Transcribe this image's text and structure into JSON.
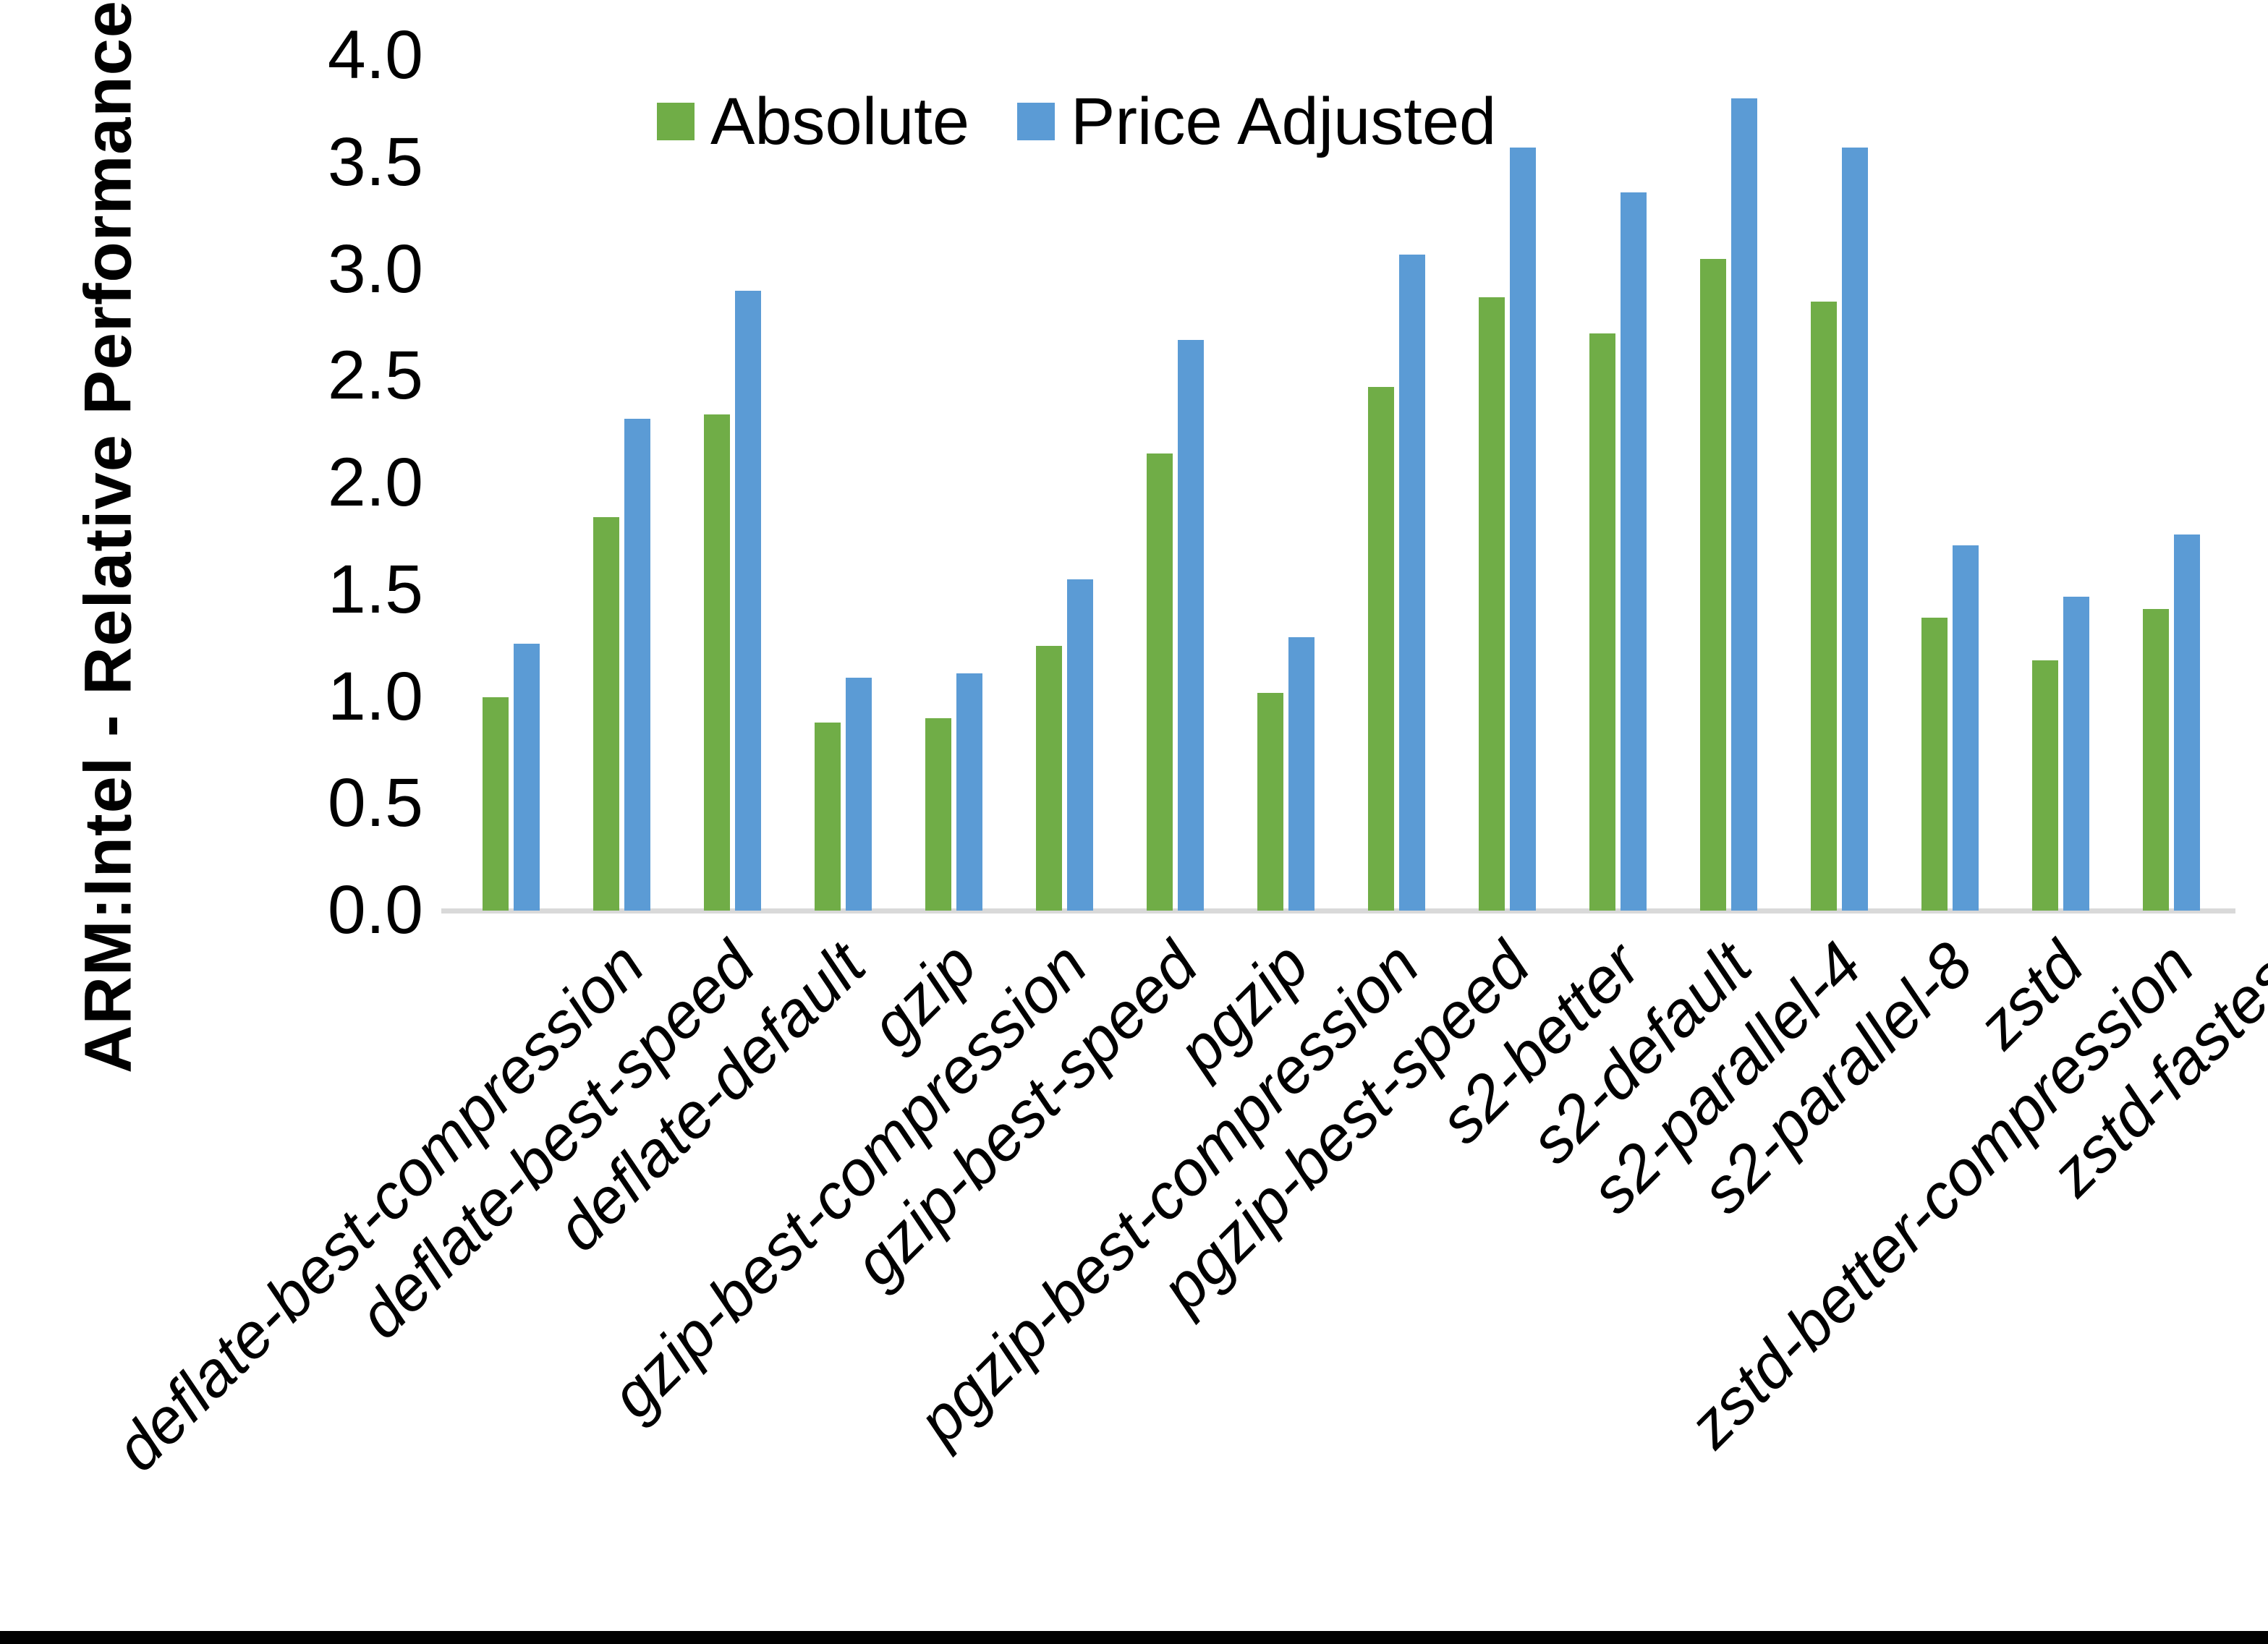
{
  "chart_data": {
    "type": "bar",
    "title": "",
    "ylabel": "ARM:Intel - Relative Performance",
    "xlabel": "",
    "ylim": [
      0.0,
      4.0
    ],
    "ytick_step": 0.5,
    "ytick_labels": [
      "0.0",
      "0.5",
      "1.0",
      "1.5",
      "2.0",
      "2.5",
      "3.0",
      "3.5",
      "4.0"
    ],
    "grid": false,
    "legend_position": "top-center",
    "axis_line_color": "#d9d9d9",
    "categories": [
      "deflate-best-compression",
      "deflate-best-speed",
      "deflate-default",
      "gzip",
      "gzip-best-compression",
      "gzip-best-speed",
      "pgzip",
      "pgzip-best-compression",
      "pgzip-best-speed",
      "s2-better",
      "s2-default",
      "s2-parallel-4",
      "s2-parallel-8",
      "zstd",
      "zstd-better-compression",
      "zstd-fastest"
    ],
    "series": [
      {
        "name": "Absolute",
        "color": "#70AD47",
        "values": [
          1.0,
          1.84,
          2.32,
          0.88,
          0.9,
          1.24,
          2.14,
          1.02,
          2.45,
          2.87,
          2.7,
          3.05,
          2.85,
          1.37,
          1.17,
          1.41
        ]
      },
      {
        "name": "Price Adjusted",
        "color": "#5B9BD5",
        "values": [
          1.25,
          2.3,
          2.9,
          1.09,
          1.11,
          1.55,
          2.67,
          1.28,
          3.07,
          3.57,
          3.36,
          3.8,
          3.57,
          1.71,
          1.47,
          1.76
        ]
      }
    ]
  }
}
